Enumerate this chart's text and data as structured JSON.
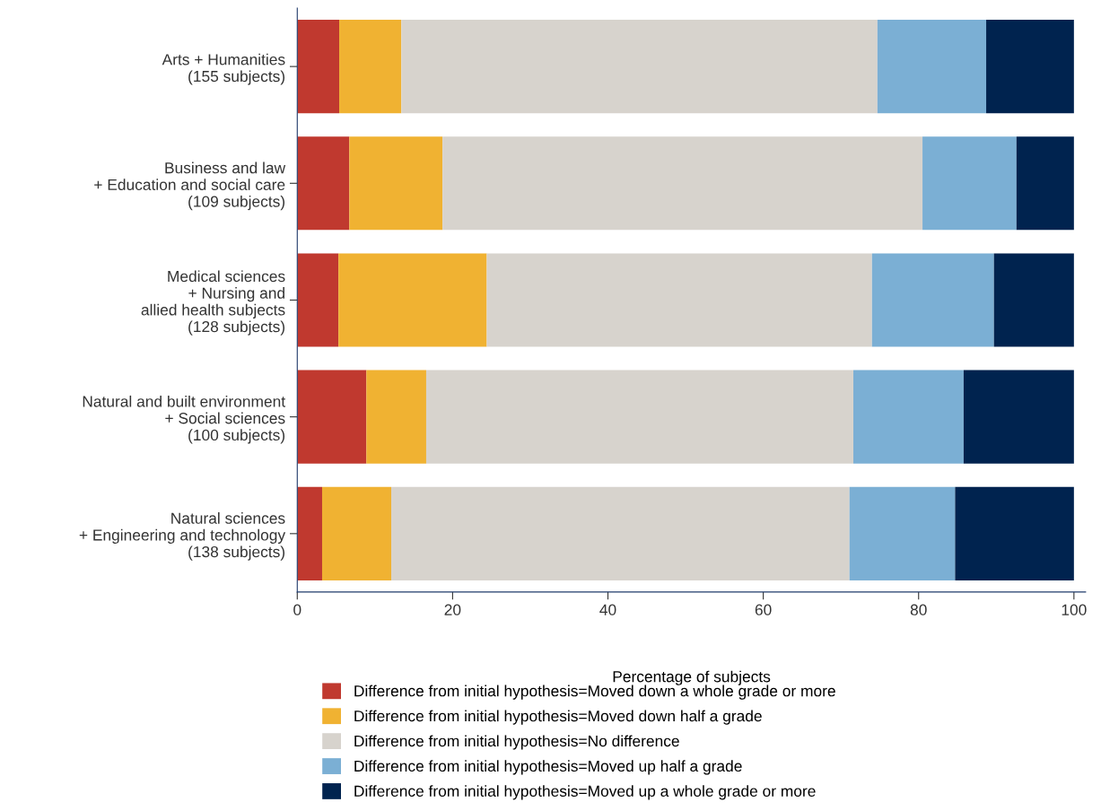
{
  "chart_data": {
    "type": "bar",
    "orientation": "horizontal",
    "stacked": true,
    "xlabel": "Percentage of subjects",
    "categories": [
      "Arts + Humanities\n(155 subjects)",
      "Business and law\n+ Education and social care\n(109 subjects)",
      "Medical sciences\n+ Nursing and\nallied health subjects\n(128 subjects)",
      "Natural and built environment\n+ Social sciences\n(100 subjects)",
      "Natural sciences\n+ Engineering and technology\n(138 subjects)"
    ],
    "series": [
      {
        "name": "Difference from initial hypothesis=Moved down a whole grade or more",
        "color": "#c0392f",
        "values": [
          5.4,
          6.7,
          5.3,
          8.9,
          3.2
        ]
      },
      {
        "name": "Difference from initial hypothesis=Moved down half a grade",
        "color": "#f0b232",
        "values": [
          8.0,
          12.0,
          19.1,
          7.7,
          8.9
        ]
      },
      {
        "name": "Difference from initial hypothesis=No difference",
        "color": "#d7d3cd",
        "values": [
          61.3,
          61.8,
          49.6,
          55.0,
          59.0
        ]
      },
      {
        "name": "Difference from initial hypothesis=Moved up half a grade",
        "color": "#7bafd4",
        "values": [
          14.0,
          12.1,
          15.7,
          14.2,
          13.6
        ]
      },
      {
        "name": "Difference from initial hypothesis=Moved up a whole grade or more",
        "color": "#00234f",
        "values": [
          11.3,
          7.4,
          10.3,
          14.2,
          15.3
        ]
      }
    ],
    "xlim": [
      0,
      101.5
    ],
    "xticks": [
      0,
      20,
      40,
      60,
      80,
      100
    ],
    "grid": false,
    "legend": "bottom"
  }
}
